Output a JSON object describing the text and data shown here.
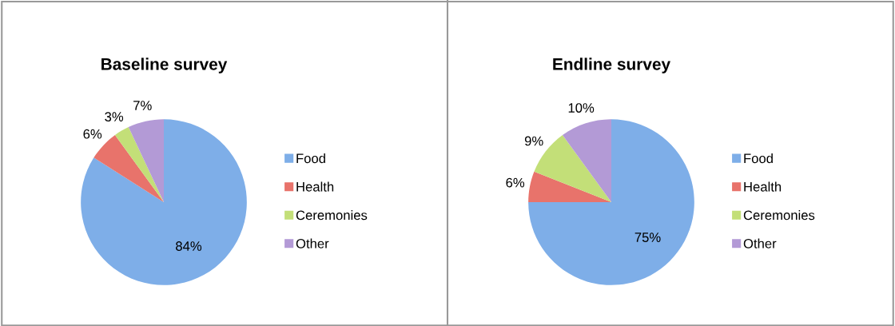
{
  "chart_data": [
    {
      "type": "pie",
      "title": "Baseline survey",
      "categories": [
        "Food",
        "Health",
        "Ceremonies",
        "Other"
      ],
      "values": [
        84,
        6,
        3,
        7
      ],
      "colors": [
        "#7eaee8",
        "#e8736b",
        "#c3df78",
        "#b39ad6"
      ],
      "value_labels": [
        "84%",
        "6%",
        "3%",
        "7%"
      ],
      "legend": "right"
    },
    {
      "type": "pie",
      "title": "Endline survey",
      "categories": [
        "Food",
        "Health",
        "Ceremonies",
        "Other"
      ],
      "values": [
        75,
        6,
        9,
        10
      ],
      "colors": [
        "#7eaee8",
        "#e8736b",
        "#c3df78",
        "#b39ad6"
      ],
      "value_labels": [
        "75%",
        "6%",
        "9%",
        "10%"
      ],
      "legend": "right"
    }
  ]
}
